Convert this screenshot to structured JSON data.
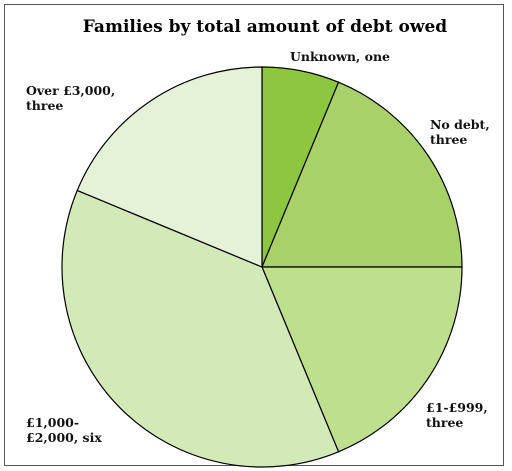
{
  "chart_data": {
    "type": "pie",
    "title": "Families by total amount of debt owed",
    "slices": [
      {
        "label_lines": [
          "Unknown, one"
        ],
        "category": "Unknown",
        "value": 1,
        "color": "#8dc63f"
      },
      {
        "label_lines": [
          "No debt,",
          "three"
        ],
        "category": "No debt",
        "value": 3,
        "color": "#a8d16a"
      },
      {
        "label_lines": [
          "£1-£999,",
          "three"
        ],
        "category": "£1-£999",
        "value": 3,
        "color": "#bddf8e"
      },
      {
        "label_lines": [
          "£1,000-",
          "£2,000, six"
        ],
        "category": "£1,000-£2,000",
        "value": 6,
        "color": "#d4e9b8"
      },
      {
        "label_lines": [
          "Over £3,000,",
          "three"
        ],
        "category": "Over £3,000",
        "value": 3,
        "color": "#e6f2d8"
      }
    ],
    "start_angle": "12 o'clock",
    "direction": "clockwise",
    "legend": "none"
  }
}
